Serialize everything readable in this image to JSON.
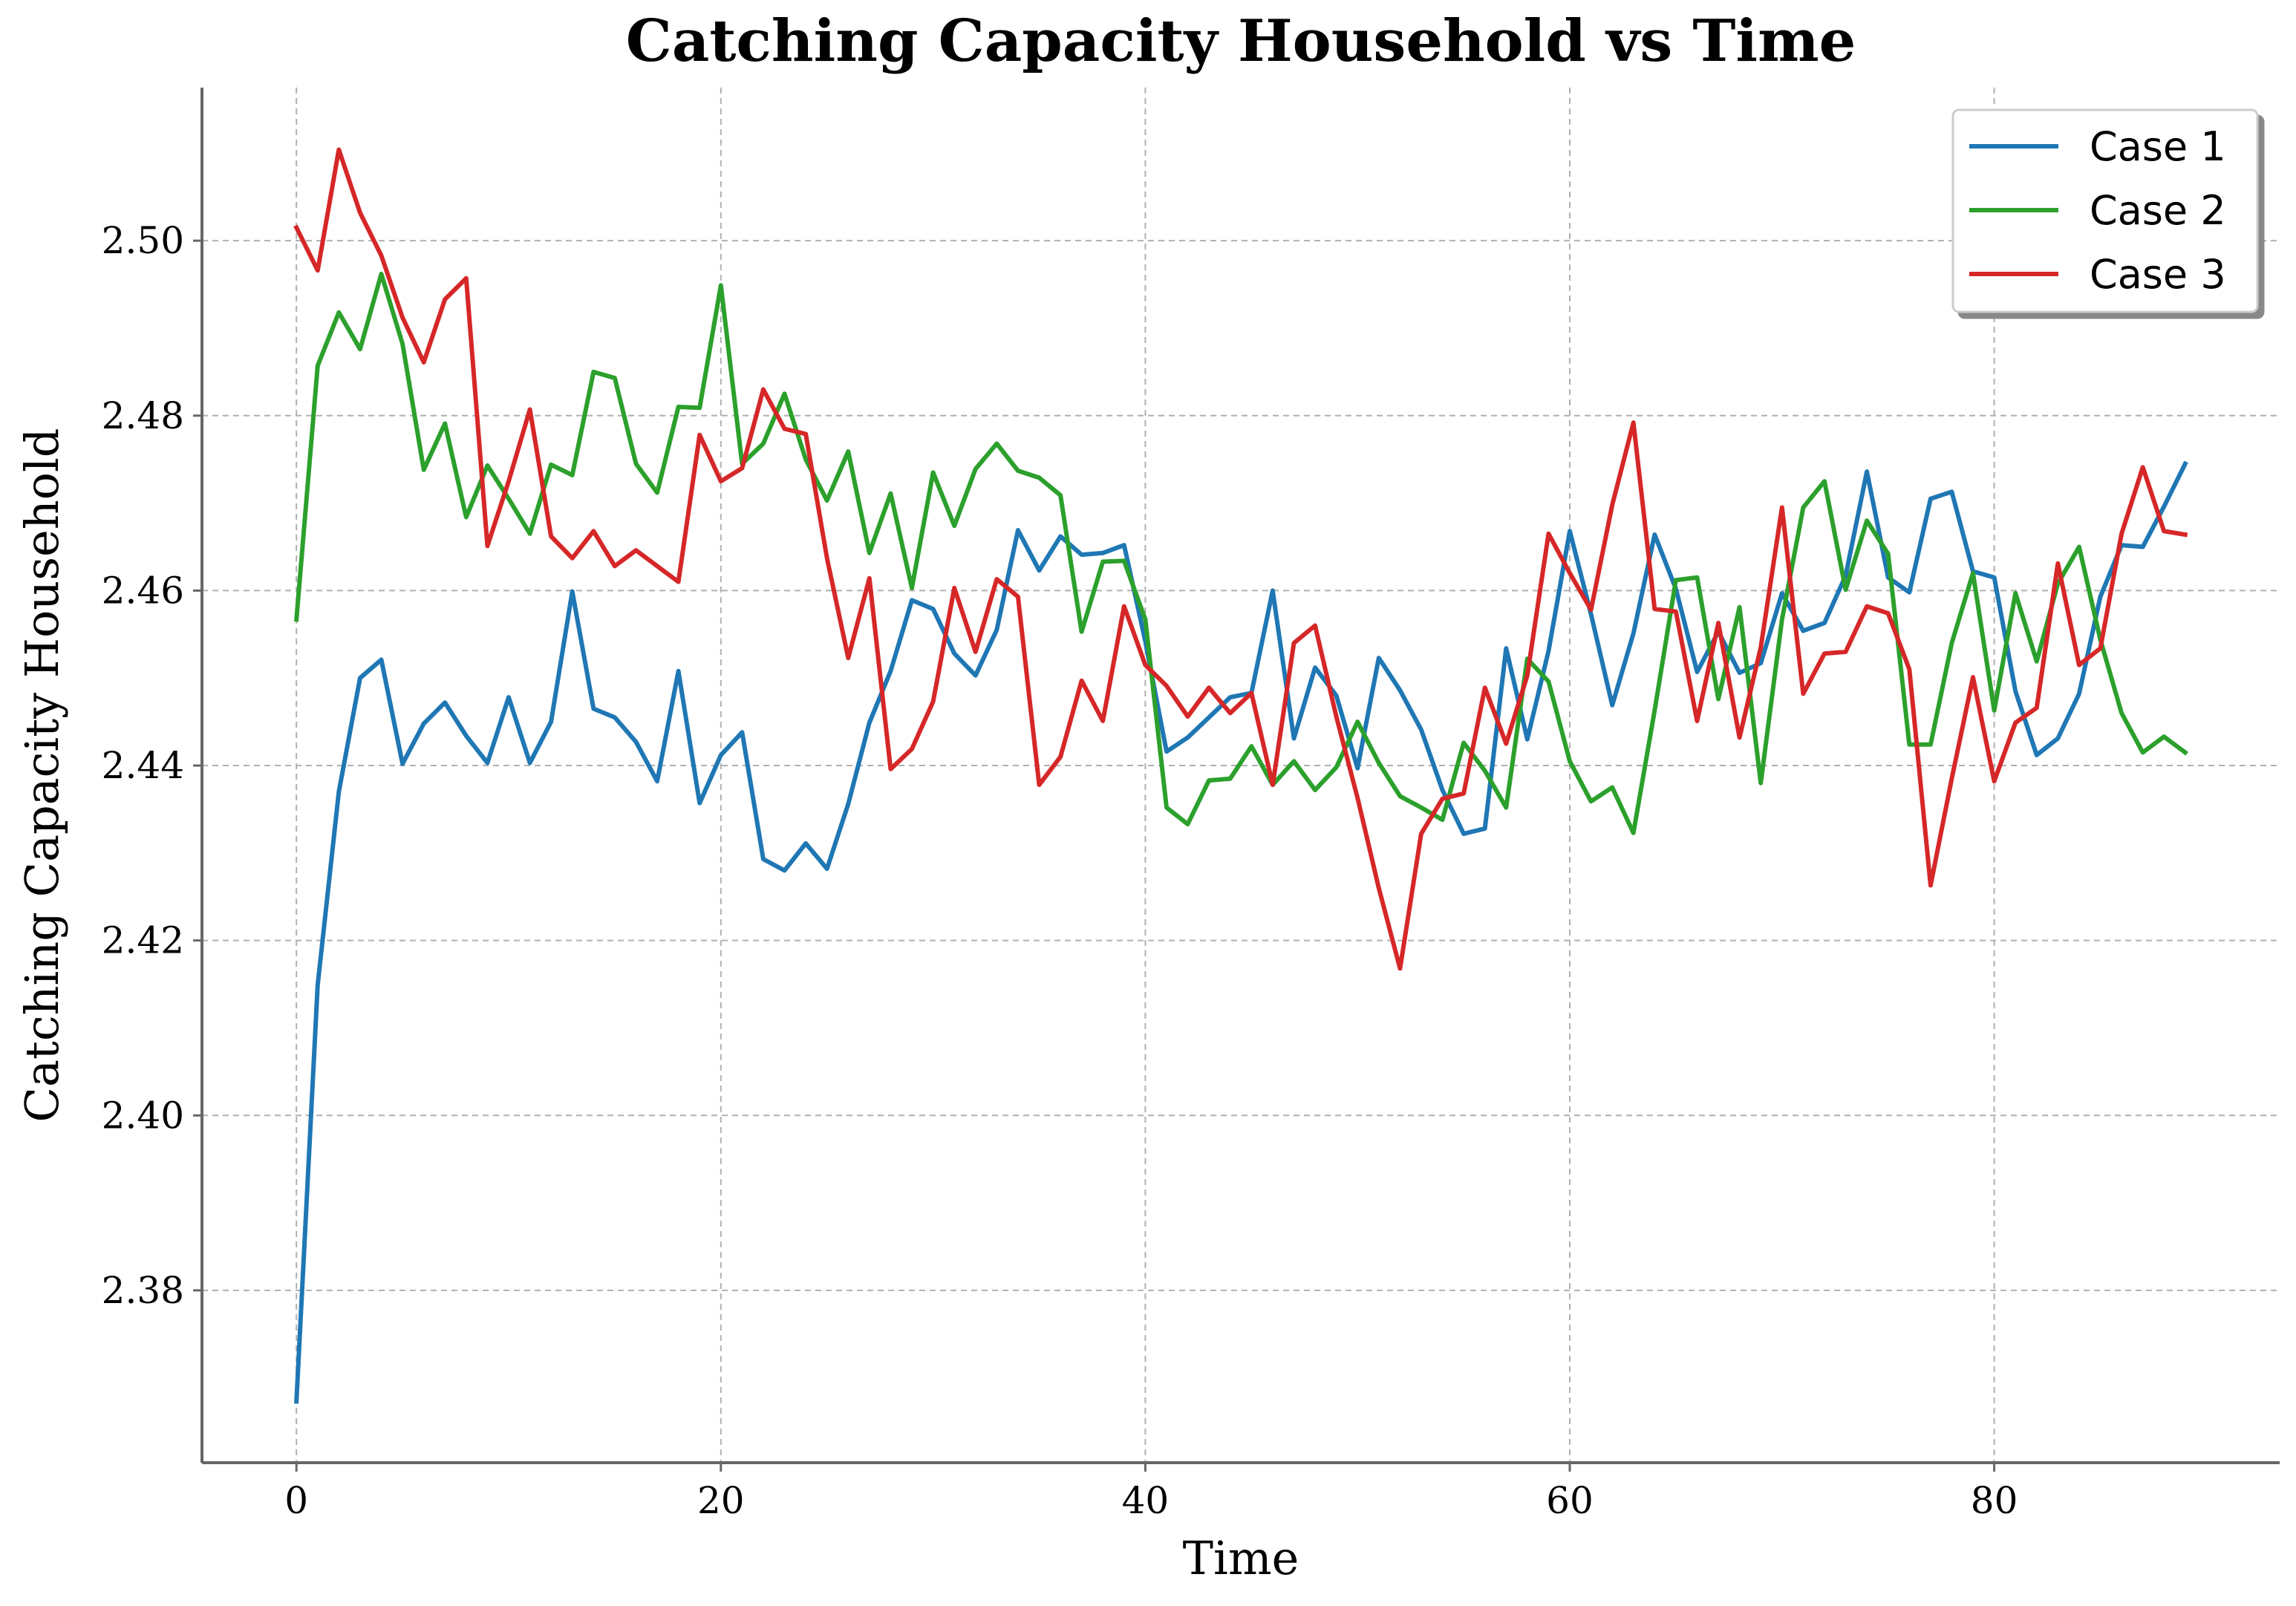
{
  "chart_data": {
    "type": "line",
    "title": "Catching Capacity Household vs Time",
    "xlabel": "Time",
    "ylabel": "Catching Capacity Household",
    "xlim": [
      -4.45,
      93.45
    ],
    "ylim": [
      2.3603,
      2.5175
    ],
    "xticks": [
      0,
      20,
      40,
      60,
      80
    ],
    "yticks": [
      2.38,
      2.4,
      2.42,
      2.44,
      2.46,
      2.48,
      2.5
    ],
    "xtick_labels": [
      "0",
      "20",
      "40",
      "60",
      "80"
    ],
    "ytick_labels": [
      "2.38",
      "2.40",
      "2.42",
      "2.44",
      "2.46",
      "2.48",
      "2.50"
    ],
    "grid": true,
    "legend_position": "top-right",
    "x": [
      0,
      1,
      2,
      3,
      4,
      5,
      6,
      7,
      8,
      9,
      10,
      11,
      12,
      13,
      14,
      15,
      16,
      17,
      18,
      19,
      20,
      21,
      22,
      23,
      24,
      25,
      26,
      27,
      28,
      29,
      30,
      31,
      32,
      33,
      34,
      35,
      36,
      37,
      38,
      39,
      40,
      41,
      42,
      43,
      44,
      45,
      46,
      47,
      48,
      49,
      50,
      51,
      52,
      53,
      54,
      55,
      56,
      57,
      58,
      59,
      60,
      61,
      62,
      63,
      64,
      65,
      66,
      67,
      68,
      69,
      70,
      71,
      72,
      73,
      74,
      75,
      76,
      77,
      78,
      79,
      80,
      81,
      82,
      83,
      84,
      85,
      86,
      87,
      88,
      89
    ],
    "series": [
      {
        "name": "Case 1",
        "color": "#1f77b4",
        "values": [
          2.3673,
          2.4149,
          2.437,
          2.45,
          2.4521,
          2.4402,
          2.4448,
          2.4472,
          2.4434,
          2.4403,
          2.4478,
          2.4403,
          2.445,
          2.4599,
          2.4465,
          2.4455,
          2.4427,
          2.4382,
          2.4508,
          2.4357,
          2.4412,
          2.4438,
          2.4293,
          2.428,
          2.4311,
          2.4282,
          2.4356,
          2.4449,
          2.4508,
          2.4589,
          2.4579,
          2.4528,
          2.4503,
          2.4555,
          2.4669,
          2.4623,
          2.4662,
          2.4641,
          2.4643,
          2.4652,
          2.4542,
          2.4416,
          2.4432,
          2.4455,
          2.4478,
          2.4483,
          2.46,
          2.4431,
          2.4512,
          2.448,
          2.4397,
          2.4523,
          2.4486,
          2.4441,
          2.4372,
          2.4322,
          2.4328,
          2.4534,
          2.443,
          2.4531,
          2.4668,
          2.4573,
          2.4469,
          2.4551,
          2.4664,
          2.4602,
          2.4507,
          2.4553,
          2.4506,
          2.4517,
          2.4597,
          2.4554,
          2.4563,
          2.4617,
          2.4736,
          2.4615,
          2.4598,
          2.4705,
          2.4713,
          2.4622,
          2.4615,
          2.4485,
          2.4412,
          2.4431,
          2.4482,
          2.4593,
          2.4652,
          2.465,
          2.4696,
          2.4745
        ]
      },
      {
        "name": "Case 2",
        "color": "#2ca02c",
        "values": [
          2.4567,
          2.4857,
          2.4918,
          2.4876,
          2.4962,
          2.4882,
          2.4738,
          2.4791,
          2.4684,
          2.4743,
          2.4705,
          2.4665,
          2.4744,
          2.4732,
          2.485,
          2.4843,
          2.4745,
          2.4712,
          2.481,
          2.4809,
          2.4949,
          2.4745,
          2.4768,
          2.4825,
          2.475,
          2.4703,
          2.4759,
          2.4643,
          2.4711,
          2.4603,
          2.4735,
          2.4674,
          2.4739,
          2.4768,
          2.4737,
          2.4729,
          2.4709,
          2.4553,
          2.4633,
          2.4634,
          2.4567,
          2.4352,
          2.4333,
          2.4383,
          2.4385,
          2.4422,
          2.4378,
          2.4405,
          2.4372,
          2.4398,
          2.445,
          2.4403,
          2.4365,
          2.4352,
          2.4338,
          2.4426,
          2.4394,
          2.4352,
          2.4522,
          2.4496,
          2.4405,
          2.4359,
          2.4375,
          2.4323,
          2.4463,
          2.4612,
          2.4615,
          2.4476,
          2.4581,
          2.438,
          2.4567,
          2.4695,
          2.4725,
          2.4601,
          2.468,
          2.4642,
          2.4424,
          2.4424,
          2.454,
          2.462,
          2.4463,
          2.4597,
          2.4519,
          2.4608,
          2.465,
          2.4544,
          2.446,
          2.4415,
          2.4433,
          2.4415
        ]
      },
      {
        "name": "Case 3",
        "color": "#d62728",
        "values": [
          2.5015,
          2.4966,
          2.5104,
          2.5032,
          2.4983,
          2.4912,
          2.4861,
          2.4933,
          2.4957,
          2.4651,
          2.4725,
          2.4807,
          2.4662,
          2.4637,
          2.4668,
          2.4628,
          2.4646,
          2.4628,
          2.461,
          2.4778,
          2.4725,
          2.474,
          2.483,
          2.4785,
          2.4779,
          2.4637,
          2.4523,
          2.4614,
          2.4396,
          2.4419,
          2.4473,
          2.4603,
          2.453,
          2.4613,
          2.4593,
          2.4378,
          2.441,
          2.4497,
          2.4451,
          2.4582,
          2.4515,
          2.4491,
          2.4456,
          2.4489,
          2.446,
          2.4483,
          2.4378,
          2.454,
          2.456,
          2.4456,
          2.4363,
          2.426,
          2.4168,
          2.4322,
          2.4362,
          2.4368,
          2.4489,
          2.4425,
          2.4503,
          2.4665,
          2.462,
          2.4578,
          2.4698,
          2.4792,
          2.4579,
          2.4576,
          2.4451,
          2.4563,
          2.4432,
          2.4535,
          2.4695,
          2.4482,
          2.4528,
          2.453,
          2.4582,
          2.4574,
          2.451,
          2.4263,
          2.4385,
          2.4501,
          2.4382,
          2.4449,
          2.4466,
          2.4631,
          2.4515,
          2.4534,
          2.4665,
          2.4741,
          2.4668,
          2.4664
        ]
      }
    ]
  }
}
